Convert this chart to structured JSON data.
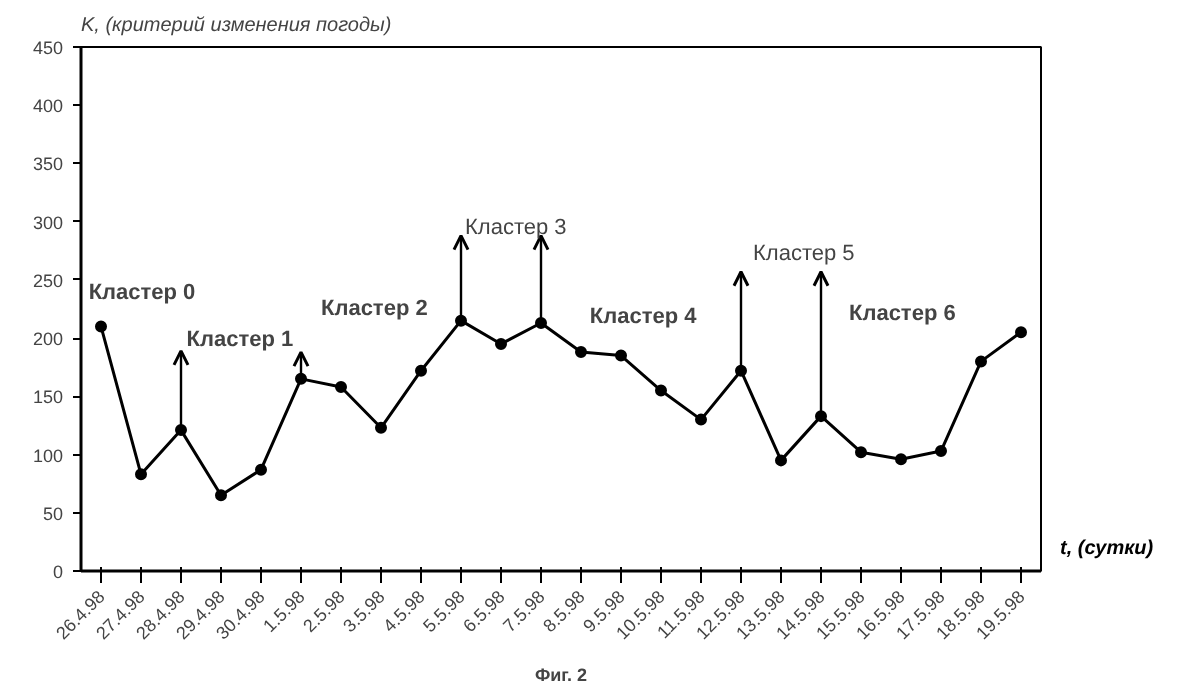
{
  "chart_data": {
    "type": "line",
    "ylabel": "K, (критерий изменения погоды)",
    "xlabel": "t, (сутки)",
    "categories": [
      "26.4.98",
      "27.4.98",
      "28.4.98",
      "29.4.98",
      "30.4.98",
      "1.5.98",
      "2.5.98",
      "3.5.98",
      "4.5.98",
      "5.5.98",
      "6.5.98",
      "7.5.98",
      "8.5.98",
      "9.5.98",
      "10.5.98",
      "11.5.98",
      "12.5.98",
      "13.5.98",
      "14.5.98",
      "15.5.98",
      "16.5.98",
      "17.5.98",
      "18.5.98",
      "19.5.98"
    ],
    "series": [
      {
        "color": "#000000",
        "values": [
          210,
          83,
          121,
          65,
          87,
          165,
          158,
          123,
          172,
          215,
          195,
          213,
          188,
          185,
          155,
          130,
          172,
          95,
          133,
          102,
          96,
          103,
          180,
          205
        ],
        "errors": [
          null,
          null,
          [
            121,
            189
          ],
          null,
          null,
          [
            165,
            188
          ],
          null,
          null,
          null,
          [
            215,
            288
          ],
          null,
          [
            213,
            288
          ],
          null,
          null,
          null,
          null,
          [
            172,
            257
          ],
          null,
          [
            133,
            257
          ],
          null,
          null,
          null,
          null,
          null
        ]
      }
    ],
    "ylim": [
      0,
      450
    ],
    "yticks": [
      0,
      50,
      100,
      150,
      200,
      250,
      300,
      350,
      400,
      450
    ],
    "grid": false,
    "marker": "circle",
    "line_style": "solid",
    "annotations": [
      "Кластер 0",
      "Кластер 1",
      "Кластер 2",
      "Кластер 3",
      "Кластер 4",
      "Кластер 5",
      "Кластер 6",
      "Фиг. 2"
    ]
  }
}
